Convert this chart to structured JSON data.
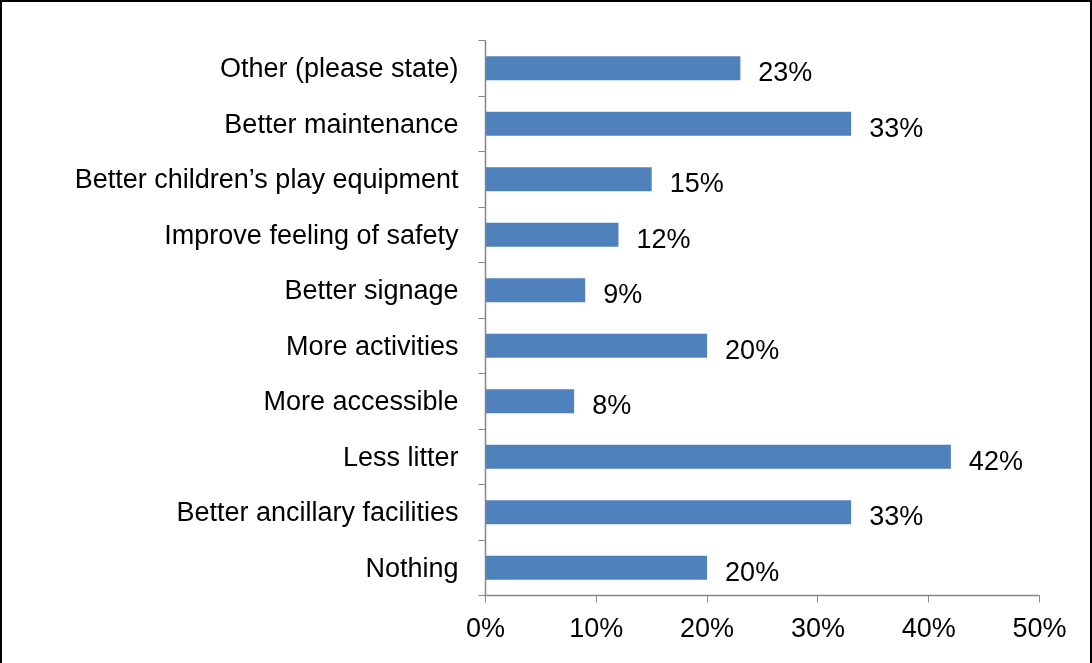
{
  "chart_data": {
    "type": "bar",
    "orientation": "horizontal",
    "categories": [
      "Other (please state)",
      "Better maintenance",
      "Better children’s play equipment",
      "Improve feeling of safety",
      "Better signage",
      "More activities",
      "More accessible",
      "Less litter",
      "Better ancillary facilities",
      "Nothing"
    ],
    "values": [
      23,
      33,
      15,
      12,
      9,
      20,
      8,
      42,
      33,
      20
    ],
    "color": "#4f81bd",
    "value_labels": [
      "23%",
      "33%",
      "15%",
      "12%",
      "9%",
      "20%",
      "8%",
      "42%",
      "33%",
      "20%"
    ],
    "xlim": [
      0,
      50
    ],
    "xticks": [
      {
        "value": 0,
        "label": "0%"
      },
      {
        "value": 10,
        "label": "10%"
      },
      {
        "value": 20,
        "label": "20%"
      },
      {
        "value": 30,
        "label": "30%"
      },
      {
        "value": 40,
        "label": "40%"
      },
      {
        "value": 50,
        "label": "50%"
      }
    ]
  }
}
